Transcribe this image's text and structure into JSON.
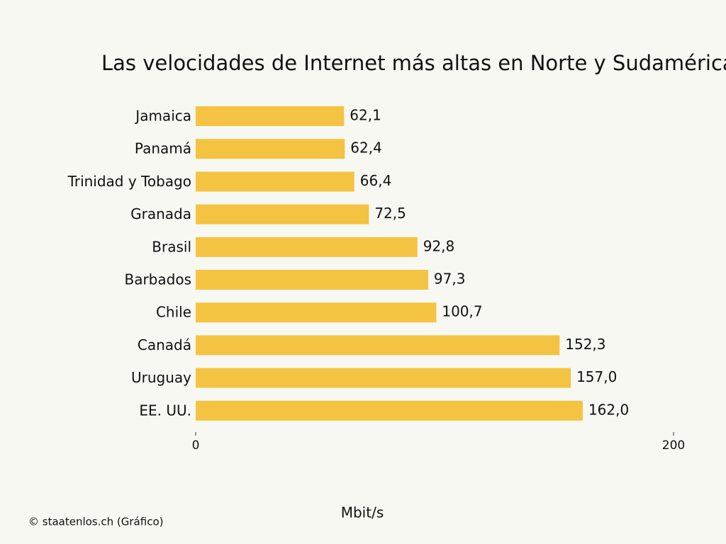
{
  "chart_data": {
    "type": "bar",
    "orientation": "horizontal",
    "title": "Las velocidades de Internet más altas en Norte y Sudamérica",
    "categories": [
      "Jamaica",
      "Panamá",
      "Trinidad y Tobago",
      "Granada",
      "Brasil",
      "Barbados",
      "Chile",
      "Canadá",
      "Uruguay",
      "EE. UU."
    ],
    "values": [
      62.1,
      62.4,
      66.4,
      72.5,
      92.8,
      97.3,
      100.7,
      152.3,
      157.0,
      162.0
    ],
    "value_labels": [
      "62,1",
      "62,4",
      "66,4",
      "72,5",
      "92,8",
      "97,3",
      "100,7",
      "152,3",
      "157,0",
      "162,0"
    ],
    "color": "#f5c342",
    "xlim": [
      0,
      200
    ],
    "xticks": [
      0,
      200
    ],
    "x_label": "Mbit/s",
    "source": "© staatenlos.ch (Gráfico)"
  }
}
